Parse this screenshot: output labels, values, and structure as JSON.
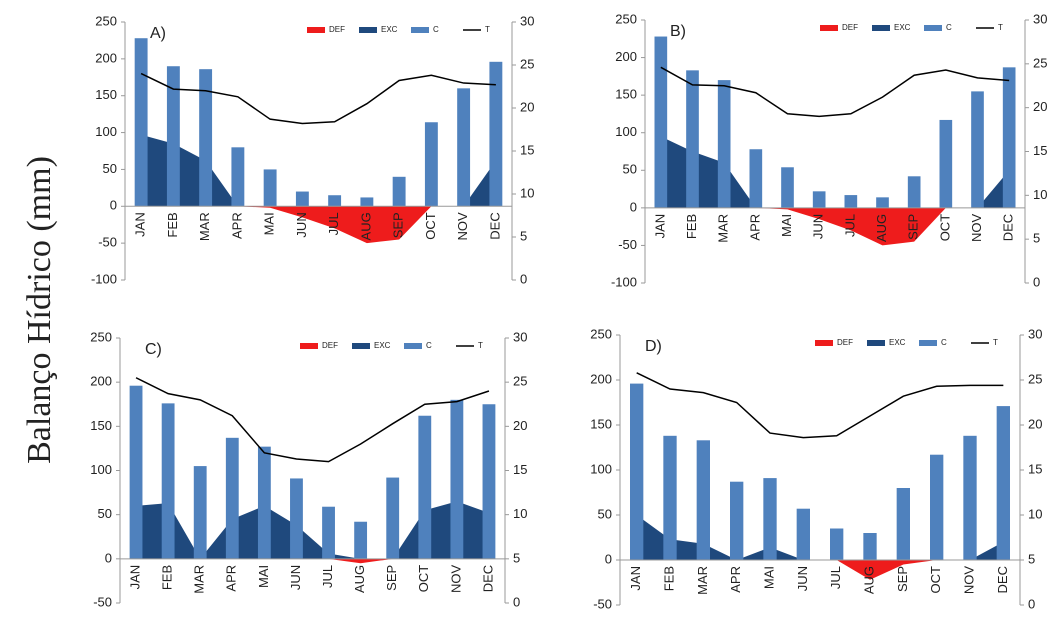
{
  "ylabel": "Balanço Hídrico (mm)",
  "chart_data": [
    {
      "type": "combo",
      "label": "A)",
      "categories": [
        "JAN",
        "FEB",
        "MAR",
        "APR",
        "MAI",
        "JUN",
        "JUL",
        "AUG",
        "SEP",
        "OCT",
        "NOV",
        "DEC"
      ],
      "ylim": [
        -100,
        250
      ],
      "yticks": [
        -100,
        -50,
        0,
        50,
        100,
        150,
        200,
        250
      ],
      "y2lim": [
        0,
        30
      ],
      "y2ticks": [
        0,
        5,
        10,
        15,
        20,
        25,
        30
      ],
      "series": [
        {
          "name": "DEF",
          "type": "area",
          "color": "#ee1c1c",
          "values": [
            0,
            0,
            0,
            0,
            -2,
            -15,
            -30,
            -50,
            -45,
            0,
            0,
            0
          ]
        },
        {
          "name": "EXC",
          "type": "area",
          "color": "#1f497d",
          "values": [
            97,
            85,
            62,
            0,
            0,
            0,
            0,
            0,
            0,
            0,
            0,
            62
          ]
        },
        {
          "name": "C",
          "type": "bar",
          "color": "#4f81bd",
          "values": [
            228,
            190,
            186,
            80,
            50,
            20,
            15,
            12,
            40,
            114,
            160,
            196
          ]
        },
        {
          "name": "T",
          "type": "line",
          "axis": "y2",
          "color": "#000000",
          "values": [
            24,
            22.2,
            22,
            21.3,
            18.7,
            18.2,
            18.4,
            20.5,
            23.2,
            23.8,
            22.9,
            22.7
          ]
        }
      ]
    },
    {
      "type": "combo",
      "label": "B)",
      "categories": [
        "JAN",
        "FEB",
        "MAR",
        "APR",
        "MAI",
        "JUN",
        "JUL",
        "AUG",
        "SEP",
        "OCT",
        "NOV",
        "DEC"
      ],
      "ylim": [
        -100,
        250
      ],
      "yticks": [
        -100,
        -50,
        0,
        50,
        100,
        150,
        200,
        250
      ],
      "y2lim": [
        0,
        30
      ],
      "y2ticks": [
        0,
        5,
        10,
        15,
        20,
        25,
        30
      ],
      "series": [
        {
          "name": "DEF",
          "type": "area",
          "color": "#ee1c1c",
          "values": [
            0,
            0,
            0,
            0,
            -2,
            -15,
            -30,
            -50,
            -45,
            0,
            0,
            0
          ]
        },
        {
          "name": "EXC",
          "type": "area",
          "color": "#1f497d",
          "values": [
            95,
            75,
            60,
            0,
            0,
            0,
            0,
            0,
            0,
            0,
            0,
            50
          ]
        },
        {
          "name": "C",
          "type": "bar",
          "color": "#4f81bd",
          "values": [
            228,
            183,
            170,
            78,
            54,
            22,
            17,
            14,
            42,
            117,
            155,
            187
          ]
        },
        {
          "name": "T",
          "type": "line",
          "axis": "y2",
          "color": "#000000",
          "values": [
            24.6,
            22.6,
            22.5,
            21.7,
            19.3,
            19,
            19.3,
            21.2,
            23.7,
            24.3,
            23.4,
            23.1
          ]
        }
      ]
    },
    {
      "type": "combo",
      "label": "C)",
      "categories": [
        "JAN",
        "FEB",
        "MAR",
        "APR",
        "MAI",
        "JUN",
        "JUL",
        "AUG",
        "SEP",
        "OCT",
        "NOV",
        "DEC"
      ],
      "ylim": [
        -50,
        250
      ],
      "yticks": [
        -50,
        0,
        50,
        100,
        150,
        200,
        250
      ],
      "y2lim": [
        0,
        30
      ],
      "y2ticks": [
        0,
        5,
        10,
        15,
        20,
        25,
        30
      ],
      "series": [
        {
          "name": "DEF",
          "type": "area",
          "color": "#ee1c1c",
          "values": [
            0,
            0,
            0,
            0,
            0,
            0,
            0,
            -5,
            0,
            0,
            0,
            0
          ]
        },
        {
          "name": "EXC",
          "type": "area",
          "color": "#1f497d",
          "values": [
            60,
            63,
            0,
            45,
            60,
            38,
            6,
            0,
            0,
            55,
            65,
            52
          ]
        },
        {
          "name": "C",
          "type": "bar",
          "color": "#4f81bd",
          "values": [
            196,
            176,
            105,
            137,
            127,
            91,
            59,
            42,
            92,
            162,
            180,
            175
          ]
        },
        {
          "name": "T",
          "type": "line",
          "axis": "y2",
          "color": "#000000",
          "values": [
            25.5,
            23.7,
            23,
            21.2,
            17,
            16.3,
            16,
            18,
            20.3,
            22.5,
            22.8,
            24
          ]
        }
      ]
    },
    {
      "type": "combo",
      "label": "D)",
      "categories": [
        "JAN",
        "FEB",
        "MAR",
        "APR",
        "MAI",
        "JUN",
        "JUL",
        "AUG",
        "SEP",
        "OCT",
        "NOV",
        "DEC"
      ],
      "ylim": [
        -50,
        250
      ],
      "yticks": [
        -50,
        0,
        50,
        100,
        150,
        200,
        250
      ],
      "y2lim": [
        0,
        30
      ],
      "y2ticks": [
        0,
        5,
        10,
        15,
        20,
        25,
        30
      ],
      "series": [
        {
          "name": "DEF",
          "type": "area",
          "color": "#ee1c1c",
          "values": [
            0,
            0,
            0,
            0,
            0,
            0,
            0,
            -22,
            -5,
            0,
            0,
            0
          ]
        },
        {
          "name": "EXC",
          "type": "area",
          "color": "#1f497d",
          "values": [
            50,
            23,
            18,
            0,
            14,
            0,
            0,
            0,
            0,
            0,
            0,
            20
          ]
        },
        {
          "name": "C",
          "type": "bar",
          "color": "#4f81bd",
          "values": [
            196,
            138,
            133,
            87,
            91,
            57,
            35,
            30,
            80,
            117,
            138,
            171
          ]
        },
        {
          "name": "T",
          "type": "line",
          "axis": "y2",
          "color": "#000000",
          "values": [
            25.8,
            24,
            23.6,
            22.5,
            19.1,
            18.6,
            18.8,
            21,
            23.2,
            24.3,
            24.4,
            24.4
          ]
        }
      ]
    }
  ]
}
